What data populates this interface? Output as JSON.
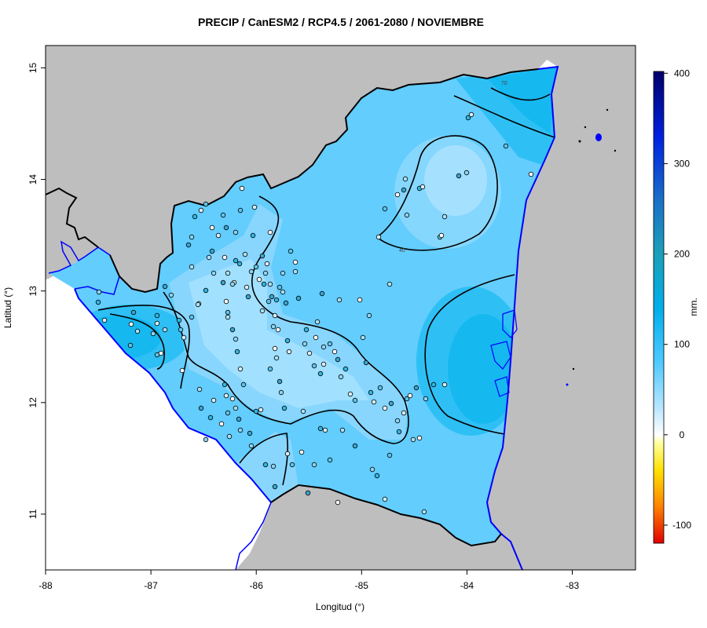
{
  "title": "PRECIP / CanESM2 / RCP4.5 / 2061-2080 / NOVIEMBRE",
  "xlabel": "Longitud (°)",
  "ylabel": "Latitud (°)",
  "colorbar": {
    "unit": "mm.",
    "ticks": [
      "400",
      "300",
      "200",
      "100",
      "0",
      "-100"
    ],
    "tick_values": [
      400,
      300,
      200,
      100,
      0,
      -100
    ],
    "range": [
      -120,
      402
    ],
    "stops": [
      {
        "v": -120,
        "c": "#e00000"
      },
      {
        "v": -80,
        "c": "#ff8000"
      },
      {
        "v": -40,
        "c": "#ffe000"
      },
      {
        "v": -10,
        "c": "#ffff99"
      },
      {
        "v": 0,
        "c": "#ffffff"
      },
      {
        "v": 30,
        "c": "#b8e6ff"
      },
      {
        "v": 80,
        "c": "#4fcaff"
      },
      {
        "v": 140,
        "c": "#00aeea"
      },
      {
        "v": 200,
        "c": "#1ca0b8"
      },
      {
        "v": 260,
        "c": "#1a70c8"
      },
      {
        "v": 330,
        "c": "#0020e0"
      },
      {
        "v": 402,
        "c": "#00006a"
      }
    ]
  },
  "axes": {
    "x_ticks": [
      "-88",
      "-87",
      "-86",
      "-85",
      "-84",
      "-83"
    ],
    "x_values": [
      -88,
      -87,
      -86,
      -85,
      -84,
      -83
    ],
    "y_ticks": [
      "11",
      "12",
      "13",
      "14",
      "15"
    ],
    "y_values": [
      11,
      12,
      13,
      14,
      15
    ],
    "xlim": [
      -88,
      -82.4
    ],
    "ylim": [
      10.5,
      15.2
    ]
  },
  "contour_labels": [
    "40",
    "70"
  ],
  "colors": {
    "land": "#bebebe",
    "coast": "#0000ff",
    "border": "#000000",
    "field_low": "#9fdcff",
    "field_mid": "#63cdfd",
    "field_high": "#16b8f0"
  }
}
